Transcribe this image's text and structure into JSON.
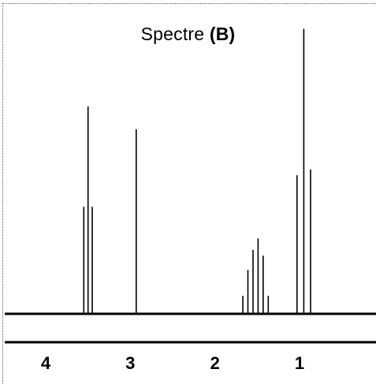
{
  "chart_data": {
    "type": "line",
    "title_prefix": "Spectre ",
    "title_bold": "(B)",
    "xlabel": "",
    "ylabel": "",
    "x_ticks": [
      4,
      3,
      2,
      1
    ],
    "xlim": [
      4.3,
      0.4
    ],
    "ylim": [
      0,
      1.0
    ],
    "grid": false,
    "series": [
      {
        "peaks": [
          {
            "x": 3.55,
            "y": 0.37
          },
          {
            "x": 3.5,
            "y": 0.72
          },
          {
            "x": 3.45,
            "y": 0.37
          },
          {
            "x": 2.93,
            "y": 0.64
          },
          {
            "x": 1.67,
            "y": 0.06
          },
          {
            "x": 1.61,
            "y": 0.15
          },
          {
            "x": 1.55,
            "y": 0.22
          },
          {
            "x": 1.49,
            "y": 0.26
          },
          {
            "x": 1.43,
            "y": 0.2
          },
          {
            "x": 1.37,
            "y": 0.06
          },
          {
            "x": 1.03,
            "y": 0.48
          },
          {
            "x": 0.95,
            "y": 0.99
          },
          {
            "x": 0.87,
            "y": 0.5
          }
        ]
      }
    ]
  }
}
